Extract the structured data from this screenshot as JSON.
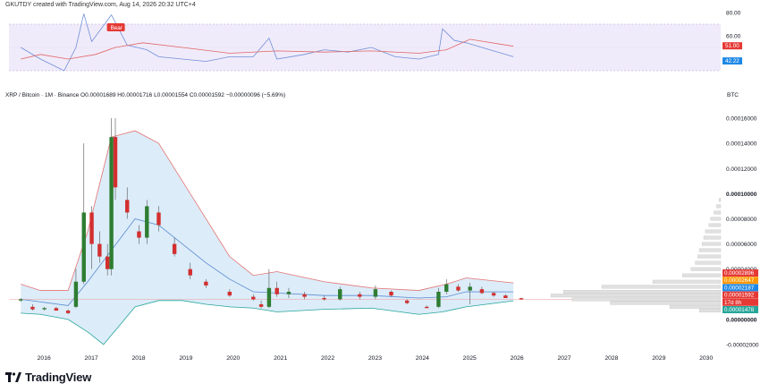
{
  "header": {
    "credit": "GKUTDY created with TradingView.com, Aug 14, 2026 20:32 UTC+4"
  },
  "symbol_line": "XRP / Bitcoin · 1M · Binance  O0.00001689 H0.00001716 L0.00001554 C0.00001592 −0.00000096 (−5.69%)",
  "price_unit": "BTC",
  "brand": {
    "name": "TradingView",
    "color": "#131722"
  },
  "colors": {
    "up": "#2e7d32",
    "down": "#d32f2f",
    "band_fill": "#dcecf9",
    "upper_band": "#e57373",
    "lower_band": "#26a69a",
    "basis": "#5b8bd0",
    "rsi_line": "#6f8fd8",
    "rsi_ma": "#e06666",
    "rsi_zone": "#f0ebfa"
  },
  "chart_data": {
    "type": "candlestick",
    "rsi_panel": {
      "axis_ticks": [
        "80.00",
        "60.00"
      ],
      "last_values": [
        {
          "label": "51.00",
          "color": "#e53935"
        },
        {
          "label": "42.22",
          "color": "#1e88e5"
        }
      ],
      "annotation": "Bear",
      "ylim": [
        20,
        80
      ],
      "rsi": [
        {
          "x": "2016-01",
          "y": 50
        },
        {
          "x": "2016-06",
          "y": 40
        },
        {
          "x": "2016-12",
          "y": 30
        },
        {
          "x": "2017-03",
          "y": 50
        },
        {
          "x": "2017-05",
          "y": 79
        },
        {
          "x": "2017-07",
          "y": 55
        },
        {
          "x": "2017-12",
          "y": 78
        },
        {
          "x": "2018-04",
          "y": 52
        },
        {
          "x": "2018-09",
          "y": 48
        },
        {
          "x": "2018-12",
          "y": 42
        },
        {
          "x": "2019-06",
          "y": 40
        },
        {
          "x": "2019-12",
          "y": 38
        },
        {
          "x": "2020-06",
          "y": 42
        },
        {
          "x": "2020-12",
          "y": 42
        },
        {
          "x": "2021-04",
          "y": 58
        },
        {
          "x": "2021-06",
          "y": 40
        },
        {
          "x": "2022-01",
          "y": 44
        },
        {
          "x": "2022-06",
          "y": 48
        },
        {
          "x": "2022-12",
          "y": 46
        },
        {
          "x": "2023-06",
          "y": 50
        },
        {
          "x": "2023-12",
          "y": 42
        },
        {
          "x": "2024-06",
          "y": 40
        },
        {
          "x": "2024-11",
          "y": 44
        },
        {
          "x": "2024-12",
          "y": 66
        },
        {
          "x": "2025-03",
          "y": 56
        },
        {
          "x": "2025-06",
          "y": 54
        },
        {
          "x": "2025-12",
          "y": 48
        },
        {
          "x": "2026-06",
          "y": 42
        }
      ],
      "rsi_ma": [
        {
          "x": "2016-01",
          "y": 40
        },
        {
          "x": "2016-06",
          "y": 44
        },
        {
          "x": "2017-01",
          "y": 40
        },
        {
          "x": "2017-08",
          "y": 44
        },
        {
          "x": "2018-01",
          "y": 50
        },
        {
          "x": "2018-08",
          "y": 54
        },
        {
          "x": "2019-06",
          "y": 50
        },
        {
          "x": "2020-06",
          "y": 45
        },
        {
          "x": "2021-06",
          "y": 47
        },
        {
          "x": "2022-06",
          "y": 46
        },
        {
          "x": "2023-06",
          "y": 47
        },
        {
          "x": "2024-06",
          "y": 45
        },
        {
          "x": "2025-01",
          "y": 48
        },
        {
          "x": "2025-07",
          "y": 57
        },
        {
          "x": "2026-06",
          "y": 51
        }
      ]
    },
    "price_panel": {
      "ylim": [
        -2e-05,
        0.00017
      ],
      "y_ticks": [
        "0.00016000",
        "0.00014000",
        "0.00012000",
        "0.00010000",
        "0.00008000",
        "0.00006000",
        "0.00004000",
        "0.00000000",
        "-0.00002000"
      ],
      "x_ticks": [
        "2016",
        "2017",
        "2018",
        "2019",
        "2020",
        "2021",
        "2022",
        "2023",
        "2024",
        "2025",
        "2026",
        "2027",
        "2028",
        "2029",
        "2030"
      ],
      "price_labels": [
        {
          "label": "0.00002896",
          "color": "#e53935"
        },
        {
          "label": "0.00002647",
          "color": "#ff9800"
        },
        {
          "label": "0.00002187",
          "color": "#1e88e5"
        },
        {
          "label": "0.00001592",
          "color": "#e53935"
        },
        {
          "label": "17d 8h",
          "color": "#e53935"
        },
        {
          "label": "0.00001478",
          "color": "#26a69a"
        }
      ],
      "candles": [
        {
          "x": "2016-01",
          "o": 1.5e-05,
          "h": 1.7e-05,
          "l": 1.4e-05,
          "c": 1.6e-05
        },
        {
          "x": "2016-04",
          "o": 1e-05,
          "h": 1.2e-05,
          "l": 7e-06,
          "c": 8e-06
        },
        {
          "x": "2016-07",
          "o": 8e-06,
          "h": 1e-05,
          "l": 7e-06,
          "c": 9e-06
        },
        {
          "x": "2016-10",
          "o": 9e-06,
          "h": 1e-05,
          "l": 7e-06,
          "c": 7e-06
        },
        {
          "x": "2017-01",
          "o": 7e-06,
          "h": 8e-06,
          "l": 4e-06,
          "c": 5e-06
        },
        {
          "x": "2017-03",
          "o": 1e-05,
          "h": 4e-05,
          "l": 9e-06,
          "c": 3e-05
        },
        {
          "x": "2017-05",
          "o": 3e-05,
          "h": 0.00014,
          "l": 2.8e-05,
          "c": 8.5e-05
        },
        {
          "x": "2017-07",
          "o": 8.5e-05,
          "h": 9e-05,
          "l": 4e-05,
          "c": 6e-05
        },
        {
          "x": "2017-09",
          "o": 6e-05,
          "h": 7e-05,
          "l": 4.5e-05,
          "c": 5e-05
        },
        {
          "x": "2017-11",
          "o": 5e-05,
          "h": 6e-05,
          "l": 3.5e-05,
          "c": 4e-05
        },
        {
          "x": "2017-12",
          "o": 4e-05,
          "h": 0.00016,
          "l": 3.5e-05,
          "c": 0.000145
        },
        {
          "x": "2018-01",
          "o": 0.000145,
          "h": 0.00016,
          "l": 9.5e-05,
          "c": 0.000105
        },
        {
          "x": "2018-04",
          "o": 9.5e-05,
          "h": 0.000105,
          "l": 8e-05,
          "c": 8.5e-05
        },
        {
          "x": "2018-07",
          "o": 7e-05,
          "h": 7.5e-05,
          "l": 6e-05,
          "c": 6.5e-05
        },
        {
          "x": "2018-09",
          "o": 6.5e-05,
          "h": 9.5e-05,
          "l": 6e-05,
          "c": 9e-05
        },
        {
          "x": "2018-12",
          "o": 8.5e-05,
          "h": 9e-05,
          "l": 7e-05,
          "c": 7.5e-05
        },
        {
          "x": "2019-04",
          "o": 6e-05,
          "h": 6.5e-05,
          "l": 5e-05,
          "c": 5.2e-05
        },
        {
          "x": "2019-08",
          "o": 4e-05,
          "h": 4.5e-05,
          "l": 3.2e-05,
          "c": 3.5e-05
        },
        {
          "x": "2019-12",
          "o": 3e-05,
          "h": 3.2e-05,
          "l": 2.5e-05,
          "c": 2.7e-05
        },
        {
          "x": "2020-06",
          "o": 2.2e-05,
          "h": 2.4e-05,
          "l": 1.8e-05,
          "c": 1.9e-05
        },
        {
          "x": "2020-12",
          "o": 1.8e-05,
          "h": 2e-05,
          "l": 1.5e-05,
          "c": 1.6e-05
        },
        {
          "x": "2021-02",
          "o": 1.2e-05,
          "h": 1.5e-05,
          "l": 9e-06,
          "c": 1e-05
        },
        {
          "x": "2021-04",
          "o": 1e-05,
          "h": 4e-05,
          "l": 9e-06,
          "c": 2.5e-05
        },
        {
          "x": "2021-06",
          "o": 2.5e-05,
          "h": 3e-05,
          "l": 1.8e-05,
          "c": 2e-05
        },
        {
          "x": "2021-09",
          "o": 2e-05,
          "h": 2.5e-05,
          "l": 1.7e-05,
          "c": 2.2e-05
        },
        {
          "x": "2022-01",
          "o": 2e-05,
          "h": 2.2e-05,
          "l": 1.6e-05,
          "c": 1.8e-05
        },
        {
          "x": "2022-06",
          "o": 1.7e-05,
          "h": 1.9e-05,
          "l": 1.5e-05,
          "c": 1.6e-05
        },
        {
          "x": "2022-10",
          "o": 1.6e-05,
          "h": 2.6e-05,
          "l": 1.5e-05,
          "c": 2.4e-05
        },
        {
          "x": "2023-03",
          "o": 2e-05,
          "h": 2.2e-05,
          "l": 1.6e-05,
          "c": 1.8e-05
        },
        {
          "x": "2023-07",
          "o": 1.8e-05,
          "h": 2.7e-05,
          "l": 1.6e-05,
          "c": 2.4e-05
        },
        {
          "x": "2023-11",
          "o": 2.2e-05,
          "h": 2.3e-05,
          "l": 1.8e-05,
          "c": 1.9e-05
        },
        {
          "x": "2024-03",
          "o": 1.5e-05,
          "h": 1.6e-05,
          "l": 1.2e-05,
          "c": 1.3e-05
        },
        {
          "x": "2024-08",
          "o": 1e-05,
          "h": 1.1e-05,
          "l": 9e-06,
          "c": 9e-06
        },
        {
          "x": "2024-11",
          "o": 1e-05,
          "h": 2.5e-05,
          "l": 9e-06,
          "c": 2.2e-05
        },
        {
          "x": "2025-01",
          "o": 2.2e-05,
          "h": 3.2e-05,
          "l": 2e-05,
          "c": 2.8e-05
        },
        {
          "x": "2025-04",
          "o": 2.6e-05,
          "h": 2.8e-05,
          "l": 2.2e-05,
          "c": 2.3e-05
        },
        {
          "x": "2025-07",
          "o": 2.3e-05,
          "h": 2.9e-05,
          "l": 1.2e-05,
          "c": 2.6e-05
        },
        {
          "x": "2025-10",
          "o": 2.4e-05,
          "h": 2.6e-05,
          "l": 2e-05,
          "c": 2.1e-05
        },
        {
          "x": "2026-01",
          "o": 2.1e-05,
          "h": 2.2e-05,
          "l": 1.8e-05,
          "c": 1.9e-05
        },
        {
          "x": "2026-04",
          "o": 1.9e-05,
          "h": 2e-05,
          "l": 1.7e-05,
          "c": 1.7e-05
        },
        {
          "x": "2026-08",
          "o": 1.689e-05,
          "h": 1.716e-05,
          "l": 1.554e-05,
          "c": 1.592e-05
        }
      ],
      "bollinger_upper": [
        {
          "x": "2016-01",
          "y": 2.8e-05
        },
        {
          "x": "2016-06",
          "y": 2.3e-05
        },
        {
          "x": "2017-01",
          "y": 2.3e-05
        },
        {
          "x": "2017-06",
          "y": 7e-05
        },
        {
          "x": "2017-12",
          "y": 0.000145
        },
        {
          "x": "2018-06",
          "y": 0.00015
        },
        {
          "x": "2018-12",
          "y": 0.00014
        },
        {
          "x": "2019-06",
          "y": 0.00011
        },
        {
          "x": "2019-12",
          "y": 8e-05
        },
        {
          "x": "2020-06",
          "y": 5e-05
        },
        {
          "x": "2020-12",
          "y": 3.5e-05
        },
        {
          "x": "2021-06",
          "y": 3.8e-05
        },
        {
          "x": "2022-06",
          "y": 3e-05
        },
        {
          "x": "2023-06",
          "y": 2.5e-05
        },
        {
          "x": "2024-06",
          "y": 2.3e-05
        },
        {
          "x": "2025-01",
          "y": 2.8e-05
        },
        {
          "x": "2025-06",
          "y": 3.3e-05
        },
        {
          "x": "2026-06",
          "y": 2.9e-05
        }
      ],
      "bollinger_basis": [
        {
          "x": "2016-01",
          "y": 1.6e-05
        },
        {
          "x": "2017-01",
          "y": 1.1e-05
        },
        {
          "x": "2017-06",
          "y": 3e-05
        },
        {
          "x": "2017-12",
          "y": 5.5e-05
        },
        {
          "x": "2018-06",
          "y": 8e-05
        },
        {
          "x": "2018-12",
          "y": 7.5e-05
        },
        {
          "x": "2019-06",
          "y": 6e-05
        },
        {
          "x": "2019-12",
          "y": 4.5e-05
        },
        {
          "x": "2020-06",
          "y": 3.2e-05
        },
        {
          "x": "2020-12",
          "y": 2.2e-05
        },
        {
          "x": "2021-06",
          "y": 2.1e-05
        },
        {
          "x": "2022-06",
          "y": 1.9e-05
        },
        {
          "x": "2023-06",
          "y": 1.9e-05
        },
        {
          "x": "2024-06",
          "y": 1.7e-05
        },
        {
          "x": "2025-01",
          "y": 1.8e-05
        },
        {
          "x": "2025-06",
          "y": 2.2e-05
        },
        {
          "x": "2026-06",
          "y": 2.19e-05
        }
      ],
      "bollinger_lower": [
        {
          "x": "2016-01",
          "y": 5e-06
        },
        {
          "x": "2016-06",
          "y": 4e-06
        },
        {
          "x": "2017-01",
          "y": 0.0
        },
        {
          "x": "2017-06",
          "y": -1e-05
        },
        {
          "x": "2017-10",
          "y": -2e-05
        },
        {
          "x": "2018-06",
          "y": 1e-05
        },
        {
          "x": "2018-12",
          "y": 1.5e-05
        },
        {
          "x": "2019-06",
          "y": 1.5e-05
        },
        {
          "x": "2019-12",
          "y": 1.2e-05
        },
        {
          "x": "2020-06",
          "y": 1e-05
        },
        {
          "x": "2020-12",
          "y": 9e-06
        },
        {
          "x": "2021-06",
          "y": 6e-06
        },
        {
          "x": "2022-06",
          "y": 8e-06
        },
        {
          "x": "2023-06",
          "y": 9e-06
        },
        {
          "x": "2024-06",
          "y": 4e-06
        },
        {
          "x": "2024-12",
          "y": 6e-06
        },
        {
          "x": "2025-06",
          "y": 1e-05
        },
        {
          "x": "2026-06",
          "y": 1.48e-05
        }
      ],
      "last_price_line": 1.592e-05,
      "volume_profile": [
        {
          "p": 9.5e-05,
          "v": 2
        },
        {
          "p": 9e-05,
          "v": 5
        },
        {
          "p": 8.5e-05,
          "v": 8
        },
        {
          "p": 8e-05,
          "v": 12
        },
        {
          "p": 7.5e-05,
          "v": 14
        },
        {
          "p": 7e-05,
          "v": 18
        },
        {
          "p": 6.5e-05,
          "v": 20
        },
        {
          "p": 6e-05,
          "v": 22
        },
        {
          "p": 5.5e-05,
          "v": 25
        },
        {
          "p": 5e-05,
          "v": 27
        },
        {
          "p": 4.5e-05,
          "v": 30
        },
        {
          "p": 4e-05,
          "v": 35
        },
        {
          "p": 3.5e-05,
          "v": 45
        },
        {
          "p": 3e-05,
          "v": 80
        },
        {
          "p": 2.6e-05,
          "v": 140
        },
        {
          "p": 2.2e-05,
          "v": 185
        },
        {
          "p": 1.9e-05,
          "v": 200
        },
        {
          "p": 1.6e-05,
          "v": 175
        },
        {
          "p": 1.3e-05,
          "v": 130
        },
        {
          "p": 1e-05,
          "v": 60
        },
        {
          "p": 7e-06,
          "v": 25
        }
      ]
    }
  }
}
